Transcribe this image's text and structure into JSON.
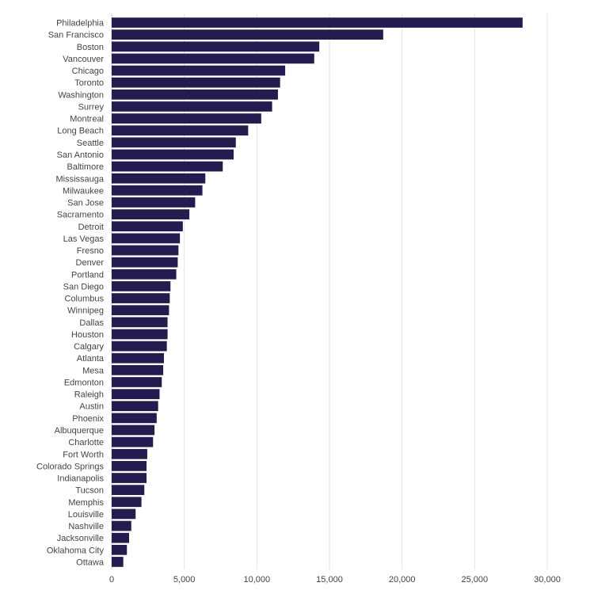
{
  "chart_data": {
    "type": "bar",
    "orientation": "horizontal",
    "title": "",
    "xlabel": "",
    "ylabel": "",
    "xlim": [
      0,
      30000
    ],
    "xticks": [
      0,
      5000,
      10000,
      15000,
      20000,
      25000,
      30000
    ],
    "xtick_labels": [
      "0",
      "5,000",
      "10,000",
      "15,000",
      "20,000",
      "25,000",
      "30,000"
    ],
    "grid": "vertical",
    "bar_color": "#221c4f",
    "categories": [
      "Philadelphia",
      "San Francisco",
      "Boston",
      "Vancouver",
      "Chicago",
      "Toronto",
      "Washington",
      "Surrey",
      "Montreal",
      "Long Beach",
      "Seattle",
      "San Antonio",
      "Baltimore",
      "Mississauga",
      "Milwaukee",
      "San Jose",
      "Sacramento",
      "Detroit",
      "Las Vegas",
      "Fresno",
      "Denver",
      "Portland",
      "San Diego",
      "Columbus",
      "Winnipeg",
      "Dallas",
      "Houston",
      "Calgary",
      "Atlanta",
      "Mesa",
      "Edmonton",
      "Raleigh",
      "Austin",
      "Phoenix",
      "Albuquerque",
      "Charlotte",
      "Fort Worth",
      "Colorado Springs",
      "Indianapolis",
      "Tucson",
      "Memphis",
      "Louisville",
      "Nashville",
      "Jacksonville",
      "Oklahoma City",
      "Ottawa"
    ],
    "values": [
      28300,
      18700,
      14300,
      13950,
      11950,
      11600,
      11450,
      11050,
      10300,
      9400,
      8550,
      8400,
      7650,
      6450,
      6250,
      5750,
      5350,
      4900,
      4700,
      4600,
      4550,
      4450,
      4050,
      4000,
      3950,
      3850,
      3850,
      3800,
      3600,
      3550,
      3450,
      3300,
      3200,
      3100,
      2950,
      2850,
      2450,
      2400,
      2400,
      2250,
      2050,
      1650,
      1350,
      1200,
      1050,
      800
    ]
  }
}
